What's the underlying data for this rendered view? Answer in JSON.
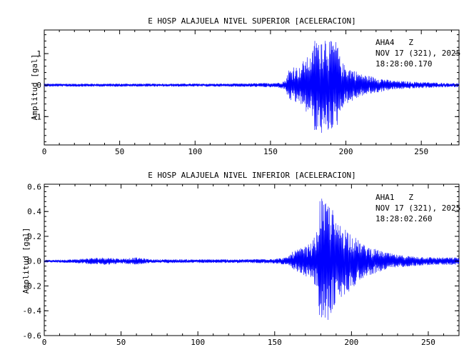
{
  "chart_data": [
    {
      "type": "line",
      "title": "E HOSP ALAJUELA NIVEL SUPERIOR [ACELERACION]",
      "ylabel": "Amplitud [gal]",
      "xlabel": "",
      "xlim": [
        0,
        275
      ],
      "ylim": [
        -1.9,
        1.75
      ],
      "xticks": [
        0,
        50,
        100,
        150,
        200,
        250
      ],
      "yticks": [
        -1,
        0,
        1
      ],
      "annotation": [
        "AHA4   Z",
        "NOV 17 (321), 2025",
        "18:28:00.170"
      ],
      "series": [
        {
          "color": "#0000ff",
          "x": [
            0,
            20,
            40,
            60,
            80,
            100,
            120,
            140,
            155,
            160,
            162,
            164,
            166,
            168,
            170,
            172,
            174,
            176,
            178,
            180,
            182,
            184,
            186,
            188,
            190,
            192,
            194,
            196,
            198,
            200,
            205,
            210,
            215,
            220,
            230,
            240,
            250,
            260,
            275
          ],
          "envelope": [
            0.05,
            0.05,
            0.05,
            0.05,
            0.05,
            0.05,
            0.05,
            0.06,
            0.08,
            0.15,
            0.5,
            0.5,
            0.7,
            0.5,
            0.6,
            0.8,
            0.9,
            0.85,
            1.1,
            1.7,
            1.3,
            1.6,
            1.6,
            1.5,
            1.4,
            1.4,
            1.4,
            0.9,
            0.7,
            0.6,
            0.5,
            0.35,
            0.3,
            0.25,
            0.15,
            0.12,
            0.1,
            0.08,
            0.06
          ]
        }
      ]
    },
    {
      "type": "line",
      "title": "E HOSP ALAJUELA NIVEL INFERIOR [ACELERACION]",
      "ylabel": "Amplitud [gal]",
      "xlabel": "",
      "xlim": [
        0,
        270
      ],
      "ylim": [
        -0.6,
        0.62
      ],
      "xticks": [
        0,
        50,
        100,
        150,
        200,
        250
      ],
      "yticks": [
        -0.6,
        -0.4,
        -0.2,
        -0.0,
        0.2,
        0.4,
        0.6
      ],
      "annotation": [
        "AHA1   Z",
        "NOV 17 (321), 2025",
        "18:28:02.260"
      ],
      "series": [
        {
          "color": "#0000ff",
          "x": [
            0,
            20,
            30,
            40,
            50,
            60,
            70,
            100,
            130,
            150,
            158,
            162,
            166,
            170,
            174,
            178,
            180,
            182,
            184,
            186,
            188,
            190,
            194,
            198,
            202,
            206,
            210,
            220,
            230,
            240,
            255,
            270
          ],
          "envelope": [
            0.01,
            0.015,
            0.025,
            0.03,
            0.02,
            0.03,
            0.015,
            0.015,
            0.015,
            0.02,
            0.03,
            0.08,
            0.1,
            0.12,
            0.15,
            0.25,
            0.6,
            0.45,
            0.5,
            0.45,
            0.42,
            0.3,
            0.3,
            0.25,
            0.2,
            0.15,
            0.12,
            0.08,
            0.05,
            0.04,
            0.03,
            0.03
          ]
        }
      ]
    }
  ]
}
